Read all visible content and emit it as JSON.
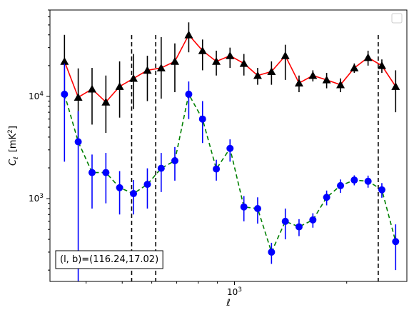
{
  "chart_data": {
    "type": "scatter",
    "xscale": "log",
    "yscale": "log",
    "xlabel": "ℓ",
    "ylabel": "C",
    "ylabel_sub": "ℓ",
    "ylabel_unit": "[mK",
    "ylabel_unit_sup": "2",
    "ylabel_unit_close": "]",
    "xlim": [
      320,
      2900
    ],
    "ylim": [
      155,
      70000
    ],
    "x_tick_labels": [
      {
        "value": 1000,
        "base": "10",
        "exp": "3"
      }
    ],
    "y_tick_labels": [
      {
        "value": 1000,
        "base": "10",
        "exp": "3"
      },
      {
        "value": 10000,
        "base": "10",
        "exp": "4"
      }
    ],
    "legend_placement": "upper-right",
    "legend_entries": [],
    "annotation": {
      "text": "(l, b)=(116.24,17.02)",
      "placement": "lower-left"
    },
    "vlines": [
      {
        "x": 530,
        "color": "#000000",
        "style": "dashed"
      },
      {
        "x": 615,
        "color": "#000000",
        "style": "dashed"
      },
      {
        "x": 2430,
        "color": "#000000",
        "style": "dashed"
      }
    ],
    "series": [
      {
        "marker": "triangle",
        "line_color": "#ff0000",
        "line_style": "solid",
        "marker_color": "#000000",
        "errorbar_color": "#000000",
        "x": [
          350,
          381,
          415,
          452,
          492,
          536,
          584,
          636,
          692,
          754,
          821,
          894,
          973,
          1060,
          1154,
          1257,
          1369,
          1490,
          1623,
          1767,
          1925,
          2096,
          2282,
          2485,
          2706
        ],
        "y": [
          22000,
          9800,
          11800,
          8800,
          12500,
          15000,
          18000,
          19000,
          22000,
          40000,
          28000,
          22000,
          25000,
          21000,
          16000,
          17500,
          25000,
          13500,
          16000,
          14500,
          13000,
          19000,
          24000,
          20000,
          12500
        ],
        "yerr_low": [
          14000,
          6000,
          6500,
          4400,
          6300,
          7500,
          9000,
          9500,
          11000,
          13000,
          10000,
          6000,
          6000,
          5000,
          3000,
          4500,
          10500,
          2500,
          2000,
          2500,
          2000,
          2000,
          4000,
          3000,
          5500
        ],
        "yerr_high": [
          18000,
          9000,
          7200,
          7200,
          9500,
          11000,
          7000,
          19000,
          11000,
          13000,
          8000,
          6000,
          5000,
          5000,
          3000,
          4500,
          7000,
          2500,
          2000,
          2500,
          2000,
          2000,
          4000,
          3000,
          5500
        ]
      },
      {
        "marker": "circle",
        "line_color": "#008000",
        "line_style": "dashed",
        "marker_color": "#0000ff",
        "errorbar_color": "#0000ff",
        "x": [
          350,
          381,
          415,
          452,
          492,
          536,
          584,
          636,
          692,
          754,
          821,
          894,
          973,
          1060,
          1154,
          1257,
          1369,
          1490,
          1623,
          1767,
          1925,
          2096,
          2282,
          2485,
          2706
        ],
        "y": [
          10500,
          3600,
          1800,
          1800,
          1280,
          1120,
          1380,
          1980,
          2350,
          10500,
          6000,
          1950,
          3100,
          830,
          800,
          300,
          600,
          530,
          620,
          1030,
          1340,
          1520,
          1480,
          1220,
          380
        ],
        "yerr_low": [
          8200,
          3480,
          1000,
          900,
          580,
          420,
          580,
          820,
          850,
          4500,
          2500,
          450,
          800,
          230,
          230,
          70,
          200,
          100,
          100,
          170,
          200,
          170,
          200,
          200,
          180
        ],
        "yerr_high": [
          10500,
          3600,
          900,
          1000,
          580,
          400,
          600,
          820,
          850,
          3500,
          3000,
          450,
          700,
          230,
          230,
          70,
          200,
          100,
          100,
          170,
          200,
          170,
          200,
          200,
          180
        ]
      }
    ]
  }
}
